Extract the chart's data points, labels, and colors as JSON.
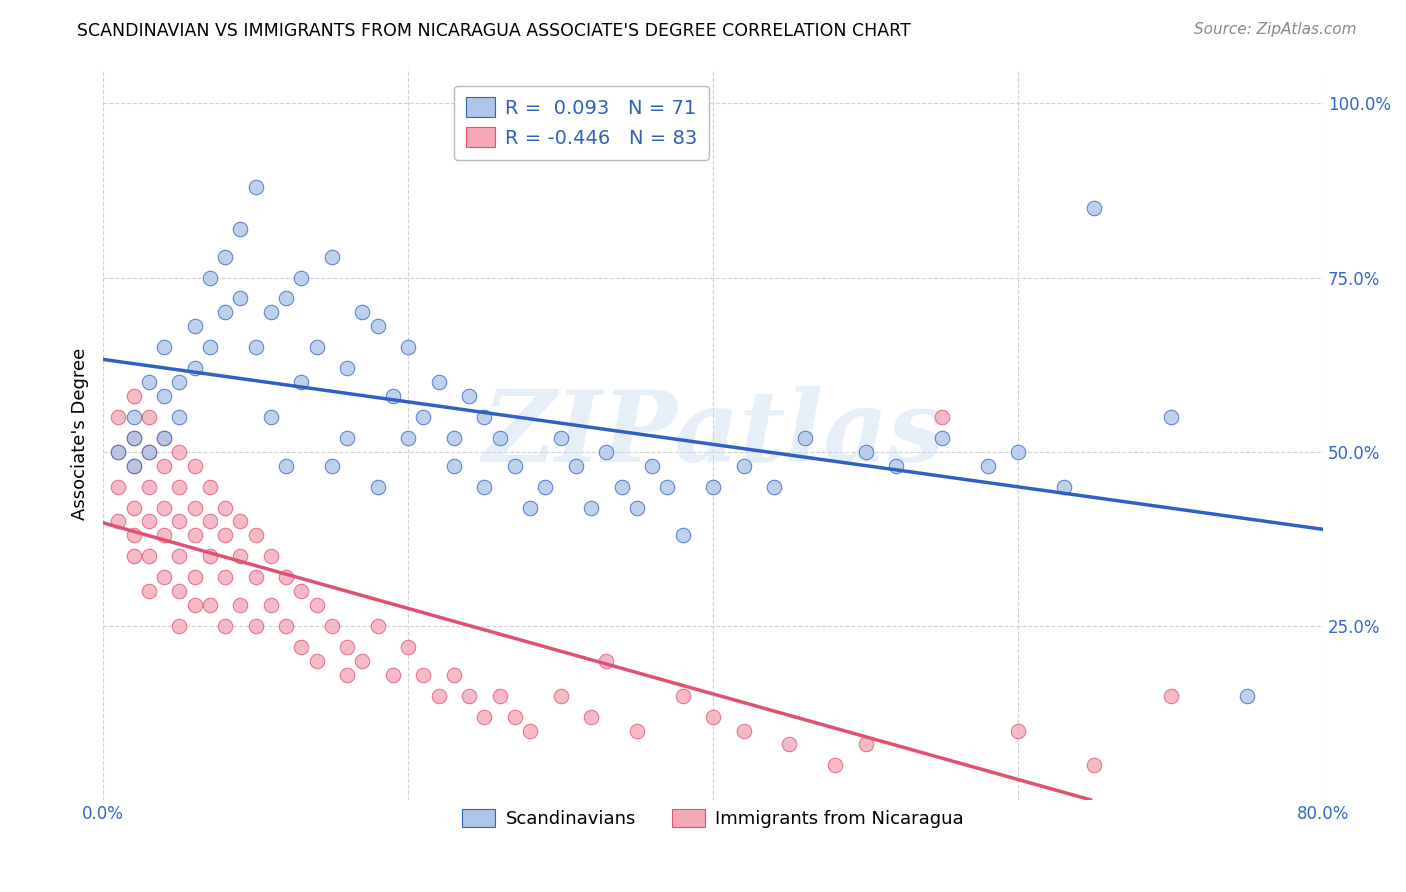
{
  "title": "SCANDINAVIAN VS IMMIGRANTS FROM NICARAGUA ASSOCIATE'S DEGREE CORRELATION CHART",
  "source": "Source: ZipAtlas.com",
  "ylabel": "Associate's Degree",
  "xlim": [
    0.0,
    0.8
  ],
  "ylim": [
    0.0,
    1.05
  ],
  "xtick_labels": [
    "0.0%",
    "",
    "",
    "",
    "80.0%"
  ],
  "xtick_values": [
    0.0,
    0.2,
    0.4,
    0.6,
    0.8
  ],
  "ytick_labels": [
    "25.0%",
    "50.0%",
    "75.0%",
    "100.0%"
  ],
  "ytick_values": [
    0.25,
    0.5,
    0.75,
    1.0
  ],
  "watermark": "ZIPatlas",
  "scandinavian_color": "#aec6e8",
  "nicaragua_color": "#f4a8b8",
  "scandinavian_line_color": "#3060c0",
  "nicaragua_line_color": "#e05070",
  "scandinavian_R": 0.093,
  "scandinavian_N": 71,
  "nicaragua_R": -0.446,
  "nicaragua_N": 83,
  "legend_label_1": "Scandinavians",
  "legend_label_2": "Immigrants from Nicaragua",
  "scand_x": [
    0.01,
    0.02,
    0.02,
    0.02,
    0.03,
    0.03,
    0.04,
    0.04,
    0.04,
    0.05,
    0.05,
    0.06,
    0.06,
    0.07,
    0.07,
    0.08,
    0.08,
    0.09,
    0.09,
    0.1,
    0.1,
    0.11,
    0.11,
    0.12,
    0.12,
    0.13,
    0.13,
    0.14,
    0.15,
    0.15,
    0.16,
    0.16,
    0.17,
    0.18,
    0.18,
    0.19,
    0.2,
    0.2,
    0.21,
    0.22,
    0.23,
    0.23,
    0.24,
    0.25,
    0.25,
    0.26,
    0.27,
    0.28,
    0.29,
    0.3,
    0.31,
    0.32,
    0.33,
    0.34,
    0.35,
    0.36,
    0.37,
    0.38,
    0.4,
    0.42,
    0.44,
    0.46,
    0.5,
    0.52,
    0.55,
    0.58,
    0.6,
    0.63,
    0.65,
    0.7,
    0.75
  ],
  "scand_y": [
    0.5,
    0.48,
    0.52,
    0.55,
    0.5,
    0.6,
    0.52,
    0.58,
    0.65,
    0.6,
    0.55,
    0.62,
    0.68,
    0.65,
    0.75,
    0.7,
    0.78,
    0.72,
    0.82,
    0.65,
    0.88,
    0.7,
    0.55,
    0.72,
    0.48,
    0.75,
    0.6,
    0.65,
    0.78,
    0.48,
    0.62,
    0.52,
    0.7,
    0.68,
    0.45,
    0.58,
    0.52,
    0.65,
    0.55,
    0.6,
    0.52,
    0.48,
    0.58,
    0.45,
    0.55,
    0.52,
    0.48,
    0.42,
    0.45,
    0.52,
    0.48,
    0.42,
    0.5,
    0.45,
    0.42,
    0.48,
    0.45,
    0.38,
    0.45,
    0.48,
    0.45,
    0.52,
    0.5,
    0.48,
    0.52,
    0.48,
    0.5,
    0.45,
    0.85,
    0.55,
    0.15
  ],
  "nic_x": [
    0.01,
    0.01,
    0.01,
    0.01,
    0.02,
    0.02,
    0.02,
    0.02,
    0.02,
    0.02,
    0.03,
    0.03,
    0.03,
    0.03,
    0.03,
    0.03,
    0.04,
    0.04,
    0.04,
    0.04,
    0.04,
    0.05,
    0.05,
    0.05,
    0.05,
    0.05,
    0.05,
    0.06,
    0.06,
    0.06,
    0.06,
    0.06,
    0.07,
    0.07,
    0.07,
    0.07,
    0.08,
    0.08,
    0.08,
    0.08,
    0.09,
    0.09,
    0.09,
    0.1,
    0.1,
    0.1,
    0.11,
    0.11,
    0.12,
    0.12,
    0.13,
    0.13,
    0.14,
    0.14,
    0.15,
    0.16,
    0.16,
    0.17,
    0.18,
    0.19,
    0.2,
    0.21,
    0.22,
    0.23,
    0.24,
    0.25,
    0.26,
    0.27,
    0.28,
    0.3,
    0.32,
    0.33,
    0.35,
    0.38,
    0.4,
    0.42,
    0.45,
    0.48,
    0.5,
    0.55,
    0.6,
    0.65,
    0.7
  ],
  "nic_y": [
    0.55,
    0.5,
    0.45,
    0.4,
    0.58,
    0.52,
    0.48,
    0.42,
    0.38,
    0.35,
    0.55,
    0.5,
    0.45,
    0.4,
    0.35,
    0.3,
    0.52,
    0.48,
    0.42,
    0.38,
    0.32,
    0.5,
    0.45,
    0.4,
    0.35,
    0.3,
    0.25,
    0.48,
    0.42,
    0.38,
    0.32,
    0.28,
    0.45,
    0.4,
    0.35,
    0.28,
    0.42,
    0.38,
    0.32,
    0.25,
    0.4,
    0.35,
    0.28,
    0.38,
    0.32,
    0.25,
    0.35,
    0.28,
    0.32,
    0.25,
    0.3,
    0.22,
    0.28,
    0.2,
    0.25,
    0.22,
    0.18,
    0.2,
    0.25,
    0.18,
    0.22,
    0.18,
    0.15,
    0.18,
    0.15,
    0.12,
    0.15,
    0.12,
    0.1,
    0.15,
    0.12,
    0.2,
    0.1,
    0.15,
    0.12,
    0.1,
    0.08,
    0.05,
    0.08,
    0.55,
    0.1,
    0.05,
    0.15
  ]
}
